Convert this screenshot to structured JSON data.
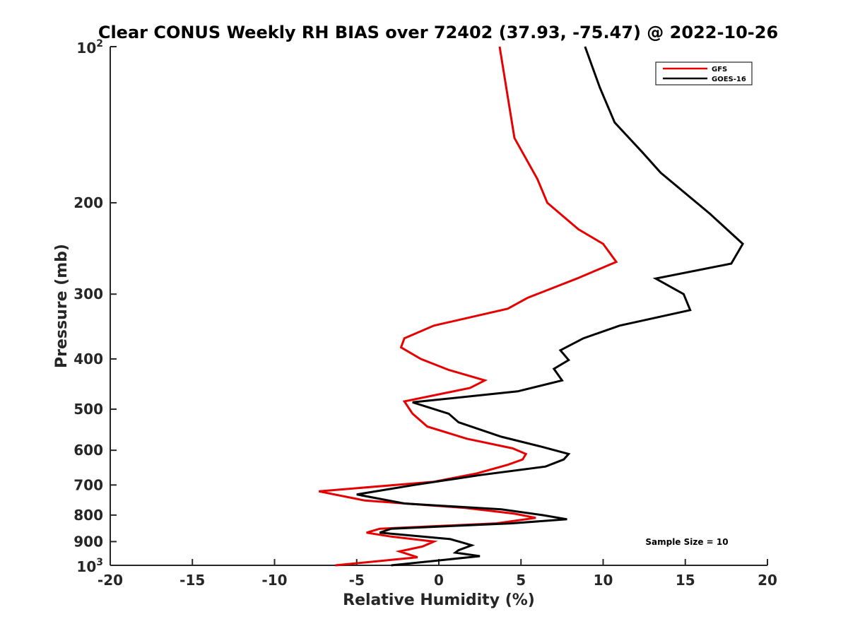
{
  "chart_data": {
    "type": "line",
    "title": "Clear CONUS Weekly RH BIAS over 72402 (37.93, -75.47) @ 2022-10-26",
    "xlabel": "Relative Humidity (%)",
    "ylabel": "Pressure (mb)",
    "xlim": [
      -20,
      20
    ],
    "ylim": [
      100,
      1000
    ],
    "yscale": "log",
    "yreversed": true,
    "x_ticks": [
      -20,
      -15,
      -10,
      -5,
      0,
      5,
      10,
      15,
      20
    ],
    "x_tick_labels": [
      "-20",
      "-15",
      "-10",
      "-5",
      "0",
      "5",
      "10",
      "15",
      "20"
    ],
    "y_ticks": [
      200,
      300,
      400,
      500,
      600,
      700,
      800,
      900
    ],
    "y_tick_labels": [
      "200",
      "300",
      "400",
      "500",
      "600",
      "700",
      "800",
      "900"
    ],
    "y_top_label": {
      "base": "10",
      "exp": "2"
    },
    "y_bottom_label": {
      "base": "10",
      "exp": "3"
    },
    "grid": false,
    "legend_position": "top-right",
    "annotation": "Sample Size = 10",
    "series": [
      {
        "name": "GFS",
        "color": "#e60000",
        "points": [
          [
            3.7,
            100
          ],
          [
            4.6,
            150
          ],
          [
            6.0,
            180
          ],
          [
            6.6,
            200
          ],
          [
            8.5,
            225
          ],
          [
            10.0,
            240
          ],
          [
            10.8,
            260
          ],
          [
            8.4,
            280
          ],
          [
            5.4,
            305
          ],
          [
            4.2,
            320
          ],
          [
            -0.3,
            345
          ],
          [
            -2.1,
            365
          ],
          [
            -2.3,
            380
          ],
          [
            -1.1,
            400
          ],
          [
            0.6,
            420
          ],
          [
            2.8,
            440
          ],
          [
            1.9,
            455
          ],
          [
            -2.1,
            483
          ],
          [
            -1.6,
            510
          ],
          [
            -0.7,
            540
          ],
          [
            1.7,
            570
          ],
          [
            4.5,
            595
          ],
          [
            5.3,
            610
          ],
          [
            5.1,
            625
          ],
          [
            4.2,
            640
          ],
          [
            2.3,
            665
          ],
          [
            -0.3,
            690
          ],
          [
            -7.3,
            720
          ],
          [
            -4.5,
            750
          ],
          [
            1.6,
            775
          ],
          [
            4.6,
            795
          ],
          [
            5.9,
            810
          ],
          [
            3.5,
            830
          ],
          [
            -3.6,
            850
          ],
          [
            -4.4,
            865
          ],
          [
            -2.9,
            880
          ],
          [
            -0.3,
            900
          ],
          [
            -1.0,
            920
          ],
          [
            -2.4,
            940
          ],
          [
            -1.3,
            965
          ],
          [
            -6.3,
            1000
          ]
        ]
      },
      {
        "name": "GOES-16",
        "color": "#000000",
        "points": [
          [
            8.9,
            100
          ],
          [
            9.8,
            120
          ],
          [
            10.7,
            140
          ],
          [
            12.4,
            160
          ],
          [
            13.5,
            175
          ],
          [
            16.5,
            210
          ],
          [
            18.5,
            240
          ],
          [
            17.8,
            262
          ],
          [
            13.2,
            280
          ],
          [
            14.9,
            300
          ],
          [
            15.3,
            322
          ],
          [
            11.0,
            345
          ],
          [
            8.8,
            365
          ],
          [
            7.4,
            385
          ],
          [
            7.9,
            402
          ],
          [
            7.0,
            418
          ],
          [
            7.5,
            440
          ],
          [
            4.8,
            462
          ],
          [
            -1.6,
            485
          ],
          [
            0.6,
            510
          ],
          [
            1.2,
            530
          ],
          [
            3.8,
            565
          ],
          [
            6.2,
            590
          ],
          [
            7.9,
            610
          ],
          [
            7.6,
            625
          ],
          [
            6.5,
            645
          ],
          [
            2.5,
            670
          ],
          [
            -1.5,
            700
          ],
          [
            -5.0,
            730
          ],
          [
            -2.1,
            760
          ],
          [
            3.8,
            780
          ],
          [
            6.3,
            800
          ],
          [
            7.8,
            815
          ],
          [
            4.4,
            830
          ],
          [
            -2.9,
            850
          ],
          [
            -3.6,
            865
          ],
          [
            0.7,
            890
          ],
          [
            1.5,
            905
          ],
          [
            2.0,
            915
          ],
          [
            1.2,
            935
          ],
          [
            1.0,
            945
          ],
          [
            2.5,
            960
          ],
          [
            -2.9,
            1000
          ]
        ]
      }
    ]
  }
}
